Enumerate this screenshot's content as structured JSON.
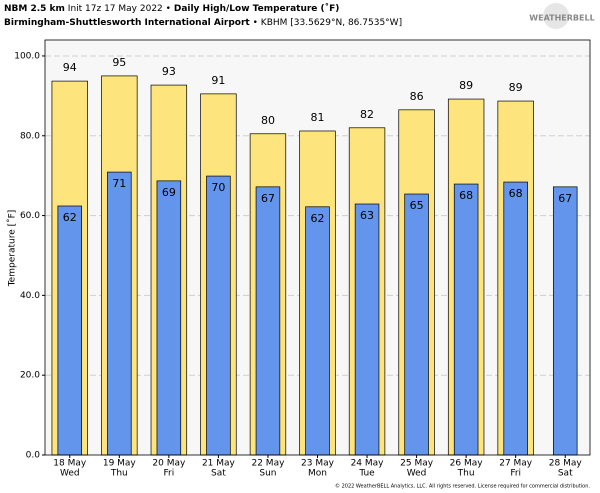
{
  "chart_data": {
    "type": "bar",
    "title": {
      "model": "NBM 2.5 km",
      "init": "Init 17z 17 May 2022",
      "separator": "•",
      "product": "Daily High/Low Temperature (˚F)"
    },
    "subtitle": {
      "station": "Birmingham-Shuttlesworth International Airport",
      "separator": "•",
      "location": "KBHM [33.5629°N, 86.7535°W]"
    },
    "logo": "WEATHERBELL",
    "ylabel": "Temperature [˚F]",
    "footer": "© 2022 WeatherBELL Analytics, LLC. All rights reserved. License required for commercial distribution.",
    "categories": [
      "18 May",
      "19 May",
      "20 May",
      "21 May",
      "22 May",
      "23 May",
      "24 May",
      "25 May",
      "26 May",
      "27 May",
      "28 May"
    ],
    "category_days": [
      "Wed",
      "Thu",
      "Fri",
      "Sat",
      "Sun",
      "Mon",
      "Tue",
      "Wed",
      "Thu",
      "Fri",
      "Sat"
    ],
    "series": [
      {
        "color": "#fde47c",
        "values": [
          93.7,
          95.0,
          92.7,
          90.5,
          80.5,
          81.2,
          82.0,
          86.5,
          89.2,
          88.7,
          null
        ],
        "value_labels": [
          "94",
          "95",
          "93",
          "91",
          "80",
          "81",
          "82",
          "86",
          "89",
          "89",
          null
        ]
      },
      {
        "color": "#6495ed",
        "values": [
          62.4,
          70.9,
          68.7,
          69.9,
          67.2,
          62.2,
          62.9,
          65.4,
          67.9,
          68.4,
          67.2
        ],
        "value_labels": [
          "62",
          "71",
          "69",
          "70",
          "67",
          "62",
          "63",
          "65",
          "68",
          "68",
          "67"
        ]
      }
    ],
    "ylim": [
      0,
      104
    ],
    "yticks": [
      {
        "value": 0,
        "label": "0.0"
      },
      {
        "value": 20,
        "label": "20.0"
      },
      {
        "value": 40,
        "label": "40.0"
      },
      {
        "value": 60,
        "label": "60.0"
      },
      {
        "value": 80,
        "label": "80.0"
      },
      {
        "value": 100,
        "label": "100.0"
      }
    ],
    "grid": true
  }
}
